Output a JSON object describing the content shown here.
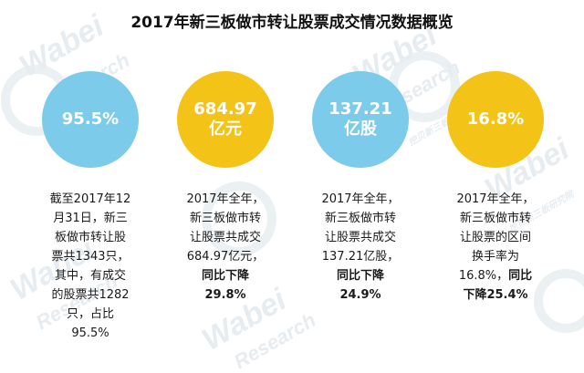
{
  "title": "2017年新三板做市转让股票成交情况数据概览",
  "colors": {
    "blue": "#7dcbea",
    "yellow": "#f3c317"
  },
  "watermark": {
    "brand": "Wabei",
    "sub": "Research",
    "cn": "挖贝新三板研究院"
  },
  "items": [
    {
      "color": "blue",
      "circle": [
        "95.5%"
      ],
      "lines": [
        "截至2017年12",
        "月31日，新三",
        "板做市转让股",
        "票共1343只，",
        "其中，有成交",
        "的股票共1282",
        "只，占比",
        "95.5%"
      ],
      "bold_from": 99
    },
    {
      "color": "yellow",
      "circle": [
        "684.97",
        "亿元"
      ],
      "lines": [
        "2017年全年，",
        "新三板做市转",
        "让股票共成交",
        "684.97亿元，",
        "同比下降",
        "29.8%"
      ],
      "bold_from": 4
    },
    {
      "color": "blue",
      "circle": [
        "137.21",
        "亿股"
      ],
      "lines": [
        "2017年全年，",
        "新三板做市转",
        "让股票共成交",
        "137.21亿股，",
        "同比下降",
        "24.9%"
      ],
      "bold_from": 4
    },
    {
      "color": "yellow",
      "circle": [
        "16.8%"
      ],
      "lines": [
        "2017年全年，",
        "新三板做市转",
        "让股票的区间",
        "换手率为",
        "16.8%，同比",
        "下降25.4%"
      ],
      "bold_from": 99
    }
  ]
}
